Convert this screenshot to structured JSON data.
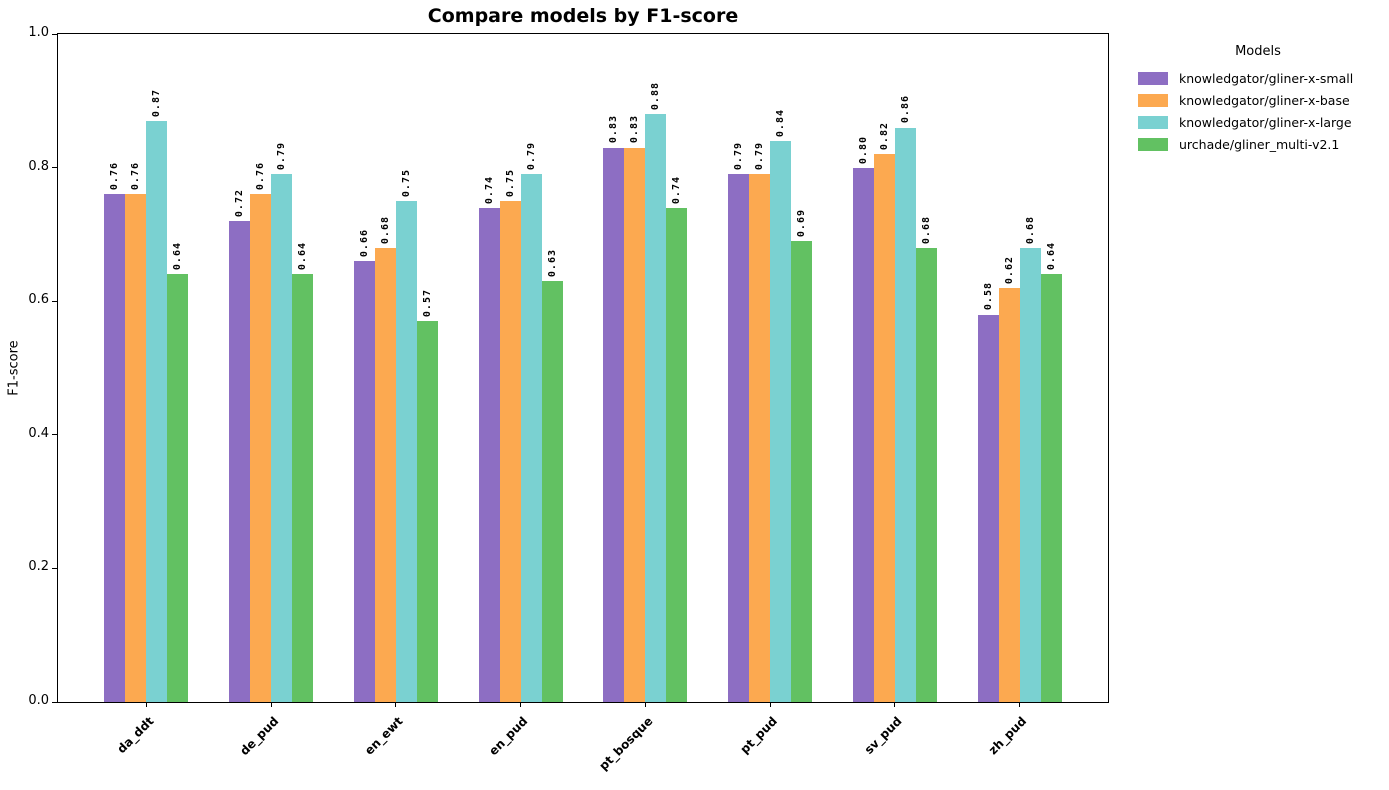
{
  "title": "Compare models by F1-score",
  "ylabel": "F1-score",
  "legend": {
    "title": "Models",
    "entries": [
      {
        "label": "knowledgator/gliner-x-small",
        "color": "#8d6ec3"
      },
      {
        "label": "knowledgator/gliner-x-base",
        "color": "#fca950"
      },
      {
        "label": "knowledgator/gliner-x-large",
        "color": "#7ad1d1"
      },
      {
        "label": "urchade/gliner_multi-v2.1",
        "color": "#62c162"
      }
    ]
  },
  "chart_data": {
    "type": "bar",
    "title": "Compare models by F1-score",
    "xlabel": "",
    "ylabel": "F1-score",
    "ylim": [
      0,
      1.0
    ],
    "yticks": [
      "0.0",
      "0.2",
      "0.4",
      "0.6",
      "0.8",
      "1.0"
    ],
    "grid": false,
    "legend_title": "Models",
    "legend_position": "outside upper right",
    "bar_label_format": "two decimals, rotated 90 degrees, bold",
    "x_tick_style": "rotated 45 degrees, bold",
    "categories": [
      "da_ddt",
      "de_pud",
      "en_ewt",
      "en_pud",
      "pt_bosque",
      "pt_pud",
      "sv_pud",
      "zh_pud"
    ],
    "series": [
      {
        "name": "knowledgator/gliner-x-small",
        "color": "#8d6ec3",
        "values": [
          0.76,
          0.72,
          0.66,
          0.74,
          0.83,
          0.79,
          0.8,
          0.58
        ]
      },
      {
        "name": "knowledgator/gliner-x-base",
        "color": "#fca950",
        "values": [
          0.76,
          0.76,
          0.68,
          0.75,
          0.83,
          0.79,
          0.82,
          0.62
        ]
      },
      {
        "name": "knowledgator/gliner-x-large",
        "color": "#7ad1d1",
        "values": [
          0.87,
          0.79,
          0.75,
          0.79,
          0.88,
          0.84,
          0.86,
          0.68
        ]
      },
      {
        "name": "urchade/gliner_multi-v2.1",
        "color": "#62c162",
        "values": [
          0.64,
          0.64,
          0.57,
          0.63,
          0.74,
          0.69,
          0.68,
          0.64
        ]
      }
    ]
  }
}
